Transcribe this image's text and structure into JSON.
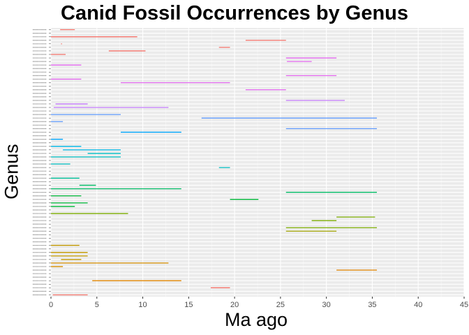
{
  "chart_data": {
    "type": "range-bar",
    "title": "Canid Fossil Occurrences by Genus",
    "xlabel": "Ma ago",
    "ylabel": "Genus",
    "xlim": [
      0,
      45
    ],
    "xticks": [
      0,
      5,
      10,
      15,
      20,
      25,
      30,
      35,
      40,
      45
    ],
    "grid": true,
    "legend": "none",
    "genera_top_to_bottom": [
      {
        "start": 1.0,
        "end": 2.6,
        "color": "#F8766D"
      },
      {
        "start": 0.0,
        "end": 0.0,
        "color": "#F8766D"
      },
      {
        "start": 0.0,
        "end": 9.4,
        "color": "#F8766D"
      },
      {
        "start": 21.2,
        "end": 25.6,
        "color": "#F8766D"
      },
      {
        "start": 1.1,
        "end": 1.2,
        "color": "#F8766D"
      },
      {
        "start": 18.3,
        "end": 19.5,
        "color": "#F8766D"
      },
      {
        "start": 6.3,
        "end": 10.3,
        "color": "#F8766D"
      },
      {
        "start": 0.0,
        "end": 1.6,
        "color": "#F8766D"
      },
      {
        "start": 25.6,
        "end": 31.1,
        "color": "#E76BF3"
      },
      {
        "start": 25.7,
        "end": 28.4,
        "color": "#E76BF3"
      },
      {
        "start": 0.0,
        "end": 3.3,
        "color": "#E76BF3"
      },
      {
        "start": 0.0,
        "end": 0.0,
        "color": "#E76BF3"
      },
      {
        "start": 0.0,
        "end": 0.0,
        "color": "#E76BF3"
      },
      {
        "start": 25.6,
        "end": 31.1,
        "color": "#E76BF3"
      },
      {
        "start": 0.0,
        "end": 3.3,
        "color": "#E76BF3"
      },
      {
        "start": 7.6,
        "end": 19.5,
        "color": "#E76BF3"
      },
      {
        "start": 0.0,
        "end": 0.0,
        "color": "#E76BF3"
      },
      {
        "start": 21.2,
        "end": 25.6,
        "color": "#E76BF3"
      },
      {
        "start": 0.0,
        "end": 0.0,
        "color": "#C77CFF"
      },
      {
        "start": 0.0,
        "end": 0.0,
        "color": "#C77CFF"
      },
      {
        "start": 25.6,
        "end": 32.0,
        "color": "#C77CFF"
      },
      {
        "start": 0.5,
        "end": 4.0,
        "color": "#C77CFF"
      },
      {
        "start": 0.3,
        "end": 12.8,
        "color": "#C77CFF"
      },
      {
        "start": 0.0,
        "end": 0.0,
        "color": "#9590FF"
      },
      {
        "start": 0.0,
        "end": 7.6,
        "color": "#619CFF"
      },
      {
        "start": 16.4,
        "end": 35.5,
        "color": "#619CFF"
      },
      {
        "start": 0.0,
        "end": 1.3,
        "color": "#619CFF"
      },
      {
        "start": 0.0,
        "end": 0.0,
        "color": "#619CFF"
      },
      {
        "start": 25.6,
        "end": 35.5,
        "color": "#619CFF"
      },
      {
        "start": 7.6,
        "end": 14.2,
        "color": "#00A9FF"
      },
      {
        "start": 0.0,
        "end": 0.0,
        "color": "#00A9FF"
      },
      {
        "start": 0.0,
        "end": 1.3,
        "color": "#00A9FF"
      },
      {
        "start": 0.0,
        "end": 0.0,
        "color": "#00A9FF"
      },
      {
        "start": 0.0,
        "end": 3.3,
        "color": "#00B8E7"
      },
      {
        "start": 1.3,
        "end": 7.6,
        "color": "#00B8E7"
      },
      {
        "start": 4.0,
        "end": 7.6,
        "color": "#00BFC4"
      },
      {
        "start": 0.0,
        "end": 7.6,
        "color": "#00BFC4"
      },
      {
        "start": 0.0,
        "end": 0.0,
        "color": "#00BFC4"
      },
      {
        "start": 0.0,
        "end": 2.1,
        "color": "#00BFC4"
      },
      {
        "start": 18.3,
        "end": 19.5,
        "color": "#00BFC4"
      },
      {
        "start": 0.0,
        "end": 0.0,
        "color": "#00C19A"
      },
      {
        "start": 0.0,
        "end": 0.0,
        "color": "#00C19A"
      },
      {
        "start": 0.0,
        "end": 3.1,
        "color": "#00C19A"
      },
      {
        "start": 0.0,
        "end": 0.0,
        "color": "#00C19A"
      },
      {
        "start": 3.1,
        "end": 4.9,
        "color": "#00BE67"
      },
      {
        "start": 0.0,
        "end": 14.2,
        "color": "#00BE67"
      },
      {
        "start": 25.6,
        "end": 35.5,
        "color": "#00BE67"
      },
      {
        "start": 0.0,
        "end": 3.3,
        "color": "#00BA38"
      },
      {
        "start": 19.5,
        "end": 22.6,
        "color": "#00BA38"
      },
      {
        "start": 0.0,
        "end": 4.0,
        "color": "#00BA38"
      },
      {
        "start": 0.0,
        "end": 2.6,
        "color": "#00BA38"
      },
      {
        "start": 0.0,
        "end": 0.0,
        "color": "#7CAE00"
      },
      {
        "start": 0.0,
        "end": 8.4,
        "color": "#7CAE00"
      },
      {
        "start": 31.1,
        "end": 35.3,
        "color": "#7CAE00"
      },
      {
        "start": 28.4,
        "end": 31.1,
        "color": "#7CAE00"
      },
      {
        "start": 0.0,
        "end": 0.0,
        "color": "#7CAE00"
      },
      {
        "start": 25.6,
        "end": 35.5,
        "color": "#7CAE00"
      },
      {
        "start": 25.6,
        "end": 31.1,
        "color": "#A3A500"
      },
      {
        "start": 0.0,
        "end": 0.0,
        "color": "#A3A500"
      },
      {
        "start": 0.0,
        "end": 0.0,
        "color": "#A3A500"
      },
      {
        "start": 0.0,
        "end": 0.0,
        "color": "#A3A500"
      },
      {
        "start": 0.0,
        "end": 3.1,
        "color": "#C49A00"
      },
      {
        "start": 0.0,
        "end": 0.0,
        "color": "#C49A00"
      },
      {
        "start": 0.0,
        "end": 4.0,
        "color": "#C49A00"
      },
      {
        "start": 0.0,
        "end": 4.0,
        "color": "#C49A00"
      },
      {
        "start": 1.1,
        "end": 3.3,
        "color": "#C49A00"
      },
      {
        "start": 0.0,
        "end": 12.8,
        "color": "#D89000"
      },
      {
        "start": 0.0,
        "end": 1.3,
        "color": "#D89000"
      },
      {
        "start": 31.1,
        "end": 35.5,
        "color": "#E58700"
      },
      {
        "start": 0.0,
        "end": 0.0,
        "color": "#E58700"
      },
      {
        "start": 0.0,
        "end": 0.0,
        "color": "#E58700"
      },
      {
        "start": 4.5,
        "end": 14.2,
        "color": "#E58700"
      },
      {
        "start": 0.0,
        "end": 0.0,
        "color": "#F07F4F"
      },
      {
        "start": 17.4,
        "end": 19.5,
        "color": "#F8766D"
      },
      {
        "start": 0.0,
        "end": 0.0,
        "color": "#F8766D"
      },
      {
        "start": 0.2,
        "end": 4.0,
        "color": "#F8766D"
      }
    ]
  }
}
